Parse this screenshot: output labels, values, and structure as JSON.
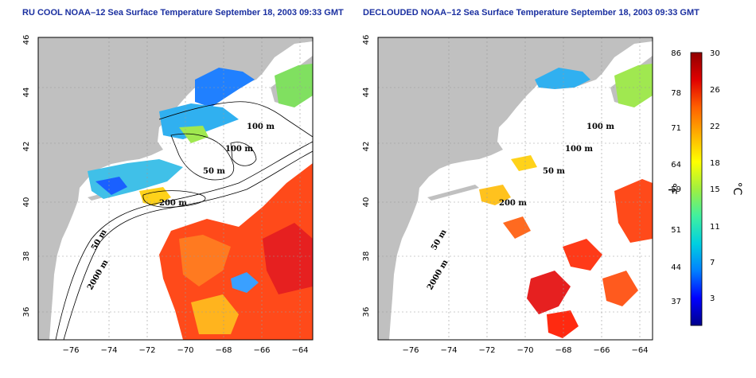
{
  "panels": [
    {
      "title": "RU COOL NOAA–12 Sea Surface Temperature September 18, 2003 09:33 GMT",
      "contour_labels": [
        "100 m",
        "100 m",
        "50 m",
        "200 m",
        "50 m",
        "2000 m"
      ]
    },
    {
      "title": "DECLOUDED NOAA–12 Sea Surface Temperature September 18, 2003 09:33 GMT",
      "contour_labels": [
        "100 m",
        "100 m",
        "50 m",
        "200 m",
        "50 m",
        "2000 m"
      ]
    }
  ],
  "axes": {
    "lon_ticks": [
      "−76",
      "−74",
      "−72",
      "−70",
      "−68",
      "−66",
      "−64"
    ],
    "lat_ticks": [
      "36",
      "38",
      "40",
      "42",
      "44",
      "46"
    ]
  },
  "colorbar": {
    "fahrenheit_label": "°F",
    "celsius_label": "°C",
    "fahrenheit_ticks": [
      "86",
      "78",
      "71",
      "64",
      "59",
      "51",
      "44",
      "37"
    ],
    "celsius_ticks": [
      "30",
      "26",
      "22",
      "18",
      "15",
      "11",
      "7",
      "3"
    ],
    "colors": [
      "#00008b",
      "#0000ff",
      "#0080ff",
      "#00d0e0",
      "#40f0a0",
      "#a0f040",
      "#ffff00",
      "#ffb000",
      "#ff6000",
      "#e00000",
      "#900000"
    ]
  },
  "colors": {
    "land": "#c0c0c0",
    "ocean_cloud": "#ffffff",
    "title": "#1a2fa0"
  }
}
